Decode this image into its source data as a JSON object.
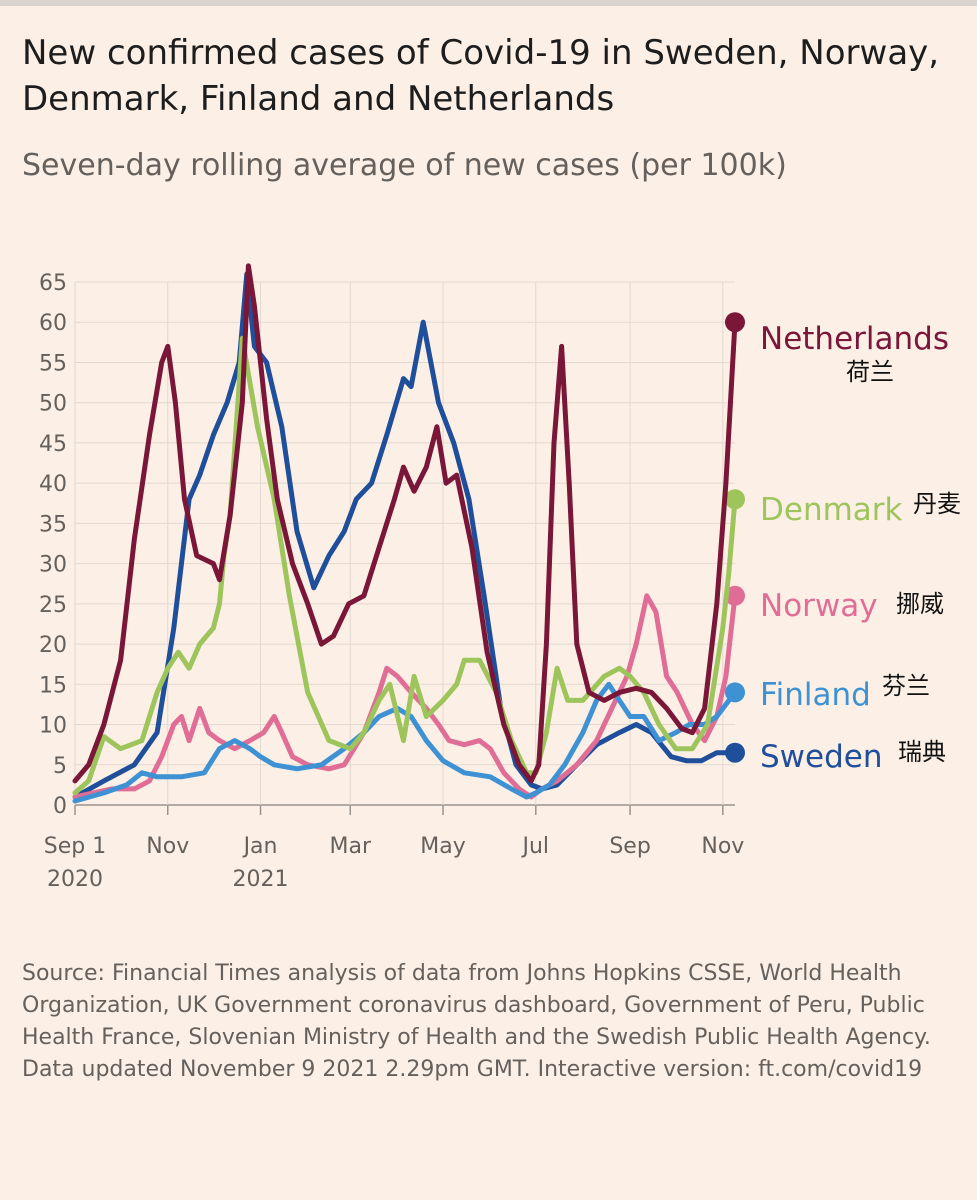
{
  "header": {
    "title": "New confirmed cases of Covid-19 in Sweden, Norway, Denmark, Finland and Netherlands",
    "subtitle": "Seven-day rolling average of new cases (per 100k)"
  },
  "footer": {
    "source": "Source: Financial Times analysis of data from Johns Hopkins CSSE, World Health Organization, UK Government coronavirus dashboard, Government of Peru, Public Health France, Slovenian Ministry of Health and the Swedish Public Health Agency.",
    "updated": "Data updated November 9 2021 2.29pm GMT. Interactive version: ft.com/covid19"
  },
  "chart_data": {
    "type": "line",
    "title": "New confirmed cases of Covid-19 in Sweden, Norway, Denmark, Finland and Netherlands",
    "subtitle": "Seven-day rolling average of new cases (per 100k)",
    "ylim": [
      0,
      65
    ],
    "y_ticks": [
      0,
      5,
      10,
      15,
      20,
      25,
      30,
      35,
      40,
      45,
      50,
      55,
      60,
      65
    ],
    "xlim": [
      "2020-09-01",
      "2021-11-09"
    ],
    "x_ticks": [
      {
        "date": "2020-09-01",
        "label": "Sep 1",
        "sub": "2020"
      },
      {
        "date": "2020-11-01",
        "label": "Nov",
        "sub": ""
      },
      {
        "date": "2021-01-01",
        "label": "Jan",
        "sub": "2021"
      },
      {
        "date": "2021-03-01",
        "label": "Mar",
        "sub": ""
      },
      {
        "date": "2021-05-01",
        "label": "May",
        "sub": ""
      },
      {
        "date": "2021-07-01",
        "label": "Jul",
        "sub": ""
      },
      {
        "date": "2021-09-01",
        "label": "Sep",
        "sub": ""
      },
      {
        "date": "2021-11-01",
        "label": "Nov",
        "sub": ""
      }
    ],
    "grid": true,
    "legend": "right, at line ends",
    "series": [
      {
        "name": "Sweden",
        "label_cn": "瑞典",
        "color": "#1f4e9b",
        "points": [
          [
            "2020-09-01",
            1
          ],
          [
            "2020-09-20",
            3
          ],
          [
            "2020-10-10",
            5
          ],
          [
            "2020-10-25",
            9
          ],
          [
            "2020-11-05",
            22
          ],
          [
            "2020-11-15",
            38
          ],
          [
            "2020-11-22",
            41
          ],
          [
            "2020-12-01",
            46
          ],
          [
            "2020-12-10",
            50
          ],
          [
            "2020-12-18",
            55
          ],
          [
            "2020-12-23",
            66
          ],
          [
            "2020-12-28",
            57
          ],
          [
            "2021-01-05",
            55
          ],
          [
            "2021-01-15",
            47
          ],
          [
            "2021-01-25",
            34
          ],
          [
            "2021-02-05",
            27
          ],
          [
            "2021-02-15",
            31
          ],
          [
            "2021-02-25",
            34
          ],
          [
            "2021-03-05",
            38
          ],
          [
            "2021-03-15",
            40
          ],
          [
            "2021-03-25",
            46
          ],
          [
            "2021-04-05",
            53
          ],
          [
            "2021-04-10",
            52
          ],
          [
            "2021-04-18",
            60
          ],
          [
            "2021-04-28",
            50
          ],
          [
            "2021-05-08",
            45
          ],
          [
            "2021-05-18",
            38
          ],
          [
            "2021-05-28",
            26
          ],
          [
            "2021-06-08",
            12
          ],
          [
            "2021-06-18",
            5
          ],
          [
            "2021-06-28",
            2.5
          ],
          [
            "2021-07-05",
            2
          ],
          [
            "2021-07-15",
            2.5
          ],
          [
            "2021-07-28",
            5
          ],
          [
            "2021-08-10",
            7.5
          ],
          [
            "2021-08-25",
            9
          ],
          [
            "2021-09-05",
            10
          ],
          [
            "2021-09-15",
            9
          ],
          [
            "2021-09-28",
            6
          ],
          [
            "2021-10-08",
            5.5
          ],
          [
            "2021-10-18",
            5.5
          ],
          [
            "2021-10-28",
            6.5
          ],
          [
            "2021-11-09",
            6.5
          ]
        ]
      },
      {
        "name": "Norway",
        "label_cn": "挪威",
        "color": "#e06d95",
        "points": [
          [
            "2020-09-01",
            1
          ],
          [
            "2020-09-25",
            2
          ],
          [
            "2020-10-10",
            2
          ],
          [
            "2020-10-20",
            3
          ],
          [
            "2020-10-28",
            6
          ],
          [
            "2020-11-05",
            10
          ],
          [
            "2020-11-10",
            11
          ],
          [
            "2020-11-15",
            8
          ],
          [
            "2020-11-22",
            12
          ],
          [
            "2020-11-28",
            9
          ],
          [
            "2020-12-05",
            8
          ],
          [
            "2020-12-15",
            7
          ],
          [
            "2020-12-25",
            8
          ],
          [
            "2021-01-03",
            9
          ],
          [
            "2021-01-10",
            11
          ],
          [
            "2021-01-15",
            9
          ],
          [
            "2021-01-22",
            6
          ],
          [
            "2021-02-01",
            5
          ],
          [
            "2021-02-15",
            4.5
          ],
          [
            "2021-02-25",
            5
          ],
          [
            "2021-03-10",
            9
          ],
          [
            "2021-03-20",
            14
          ],
          [
            "2021-03-25",
            17
          ],
          [
            "2021-04-01",
            16
          ],
          [
            "2021-04-10",
            14
          ],
          [
            "2021-04-20",
            12
          ],
          [
            "2021-04-28",
            10
          ],
          [
            "2021-05-05",
            8
          ],
          [
            "2021-05-15",
            7.5
          ],
          [
            "2021-05-25",
            8
          ],
          [
            "2021-06-01",
            7
          ],
          [
            "2021-06-10",
            4
          ],
          [
            "2021-06-20",
            2
          ],
          [
            "2021-06-28",
            1
          ],
          [
            "2021-07-05",
            2
          ],
          [
            "2021-07-15",
            3
          ],
          [
            "2021-07-28",
            5
          ],
          [
            "2021-08-10",
            8
          ],
          [
            "2021-08-20",
            12
          ],
          [
            "2021-08-30",
            16
          ],
          [
            "2021-09-05",
            20
          ],
          [
            "2021-09-12",
            26
          ],
          [
            "2021-09-18",
            24
          ],
          [
            "2021-09-25",
            16
          ],
          [
            "2021-10-02",
            14
          ],
          [
            "2021-10-12",
            10
          ],
          [
            "2021-10-20",
            8
          ],
          [
            "2021-10-28",
            11
          ],
          [
            "2021-11-03",
            16
          ],
          [
            "2021-11-09",
            26
          ]
        ]
      },
      {
        "name": "Finland",
        "label_cn": "芬兰",
        "color": "#3e92d4",
        "points": [
          [
            "2020-09-01",
            0.5
          ],
          [
            "2020-09-20",
            1.5
          ],
          [
            "2020-10-05",
            2.5
          ],
          [
            "2020-10-15",
            4
          ],
          [
            "2020-10-25",
            3.5
          ],
          [
            "2020-11-10",
            3.5
          ],
          [
            "2020-11-25",
            4
          ],
          [
            "2020-12-05",
            7
          ],
          [
            "2020-12-15",
            8
          ],
          [
            "2020-12-25",
            7
          ],
          [
            "2021-01-01",
            6
          ],
          [
            "2021-01-10",
            5
          ],
          [
            "2021-01-25",
            4.5
          ],
          [
            "2021-02-10",
            5
          ],
          [
            "2021-02-25",
            7
          ],
          [
            "2021-03-10",
            9
          ],
          [
            "2021-03-20",
            11
          ],
          [
            "2021-04-01",
            12
          ],
          [
            "2021-04-10",
            11
          ],
          [
            "2021-04-20",
            8
          ],
          [
            "2021-05-01",
            5.5
          ],
          [
            "2021-05-15",
            4
          ],
          [
            "2021-06-01",
            3.5
          ],
          [
            "2021-06-15",
            2
          ],
          [
            "2021-06-25",
            1
          ],
          [
            "2021-07-01",
            1.5
          ],
          [
            "2021-07-10",
            2.5
          ],
          [
            "2021-07-20",
            5
          ],
          [
            "2021-08-01",
            9
          ],
          [
            "2021-08-10",
            13
          ],
          [
            "2021-08-18",
            15
          ],
          [
            "2021-08-25",
            13
          ],
          [
            "2021-09-01",
            11
          ],
          [
            "2021-09-10",
            11
          ],
          [
            "2021-09-20",
            8
          ],
          [
            "2021-10-01",
            9
          ],
          [
            "2021-10-10",
            10
          ],
          [
            "2021-10-20",
            10
          ],
          [
            "2021-10-28",
            11
          ],
          [
            "2021-11-09",
            14
          ]
        ]
      },
      {
        "name": "Denmark",
        "label_cn": "丹麦",
        "color": "#9ec45c",
        "points": [
          [
            "2020-09-01",
            1.5
          ],
          [
            "2020-09-10",
            3
          ],
          [
            "2020-09-20",
            8.5
          ],
          [
            "2020-10-01",
            7
          ],
          [
            "2020-10-15",
            8
          ],
          [
            "2020-10-25",
            14
          ],
          [
            "2020-11-01",
            17
          ],
          [
            "2020-11-08",
            19
          ],
          [
            "2020-11-15",
            17
          ],
          [
            "2020-11-22",
            20
          ],
          [
            "2020-12-01",
            22
          ],
          [
            "2020-12-05",
            25
          ],
          [
            "2020-12-08",
            31
          ],
          [
            "2020-12-12",
            36
          ],
          [
            "2020-12-20",
            58
          ],
          [
            "2020-12-30",
            47
          ],
          [
            "2021-01-10",
            38
          ],
          [
            "2021-01-20",
            26
          ],
          [
            "2021-02-01",
            14
          ],
          [
            "2021-02-15",
            8
          ],
          [
            "2021-03-01",
            7
          ],
          [
            "2021-03-10",
            9
          ],
          [
            "2021-03-20",
            13
          ],
          [
            "2021-03-27",
            15
          ],
          [
            "2021-04-05",
            8
          ],
          [
            "2021-04-12",
            16
          ],
          [
            "2021-04-20",
            11
          ],
          [
            "2021-05-01",
            13
          ],
          [
            "2021-05-10",
            15
          ],
          [
            "2021-05-15",
            18
          ],
          [
            "2021-05-25",
            18
          ],
          [
            "2021-06-05",
            14
          ],
          [
            "2021-06-15",
            8
          ],
          [
            "2021-06-25",
            4
          ],
          [
            "2021-07-01",
            4
          ],
          [
            "2021-07-08",
            9
          ],
          [
            "2021-07-15",
            17
          ],
          [
            "2021-07-22",
            13
          ],
          [
            "2021-08-01",
            13
          ],
          [
            "2021-08-15",
            16
          ],
          [
            "2021-08-25",
            17
          ],
          [
            "2021-09-01",
            16
          ],
          [
            "2021-09-10",
            14
          ],
          [
            "2021-09-20",
            10
          ],
          [
            "2021-10-01",
            7
          ],
          [
            "2021-10-12",
            7
          ],
          [
            "2021-10-22",
            10
          ],
          [
            "2021-11-01",
            22
          ],
          [
            "2021-11-05",
            29
          ],
          [
            "2021-11-09",
            38
          ]
        ]
      },
      {
        "name": "Netherlands",
        "label_cn": "荷兰",
        "color": "#7a1638",
        "points": [
          [
            "2020-09-01",
            3
          ],
          [
            "2020-09-10",
            5
          ],
          [
            "2020-09-20",
            10
          ],
          [
            "2020-10-01",
            18
          ],
          [
            "2020-10-10",
            33
          ],
          [
            "2020-10-20",
            46
          ],
          [
            "2020-10-28",
            55
          ],
          [
            "2020-11-01",
            57
          ],
          [
            "2020-11-06",
            50
          ],
          [
            "2020-11-12",
            38
          ],
          [
            "2020-11-20",
            31
          ],
          [
            "2020-12-01",
            30
          ],
          [
            "2020-12-05",
            28
          ],
          [
            "2020-12-12",
            36
          ],
          [
            "2020-12-20",
            50
          ],
          [
            "2020-12-24",
            67
          ],
          [
            "2020-12-28",
            62
          ],
          [
            "2021-01-05",
            48
          ],
          [
            "2021-01-12",
            38
          ],
          [
            "2021-01-22",
            30
          ],
          [
            "2021-02-01",
            25
          ],
          [
            "2021-02-10",
            20
          ],
          [
            "2021-02-18",
            21
          ],
          [
            "2021-02-28",
            25
          ],
          [
            "2021-03-10",
            26
          ],
          [
            "2021-03-20",
            32
          ],
          [
            "2021-03-30",
            38
          ],
          [
            "2021-04-05",
            42
          ],
          [
            "2021-04-12",
            39
          ],
          [
            "2021-04-20",
            42
          ],
          [
            "2021-04-27",
            47
          ],
          [
            "2021-05-03",
            40
          ],
          [
            "2021-05-10",
            41
          ],
          [
            "2021-05-20",
            32
          ],
          [
            "2021-05-30",
            19
          ],
          [
            "2021-06-10",
            10
          ],
          [
            "2021-06-20",
            5
          ],
          [
            "2021-06-28",
            3
          ],
          [
            "2021-07-03",
            5
          ],
          [
            "2021-07-08",
            20
          ],
          [
            "2021-07-13",
            45
          ],
          [
            "2021-07-18",
            57
          ],
          [
            "2021-07-23",
            40
          ],
          [
            "2021-07-28",
            20
          ],
          [
            "2021-08-05",
            14
          ],
          [
            "2021-08-15",
            13
          ],
          [
            "2021-08-25",
            14
          ],
          [
            "2021-09-05",
            14.5
          ],
          [
            "2021-09-15",
            14
          ],
          [
            "2021-09-25",
            12
          ],
          [
            "2021-10-05",
            9.5
          ],
          [
            "2021-10-12",
            9
          ],
          [
            "2021-10-20",
            12
          ],
          [
            "2021-10-28",
            25
          ],
          [
            "2021-11-03",
            40
          ],
          [
            "2021-11-09",
            60
          ]
        ]
      }
    ]
  }
}
